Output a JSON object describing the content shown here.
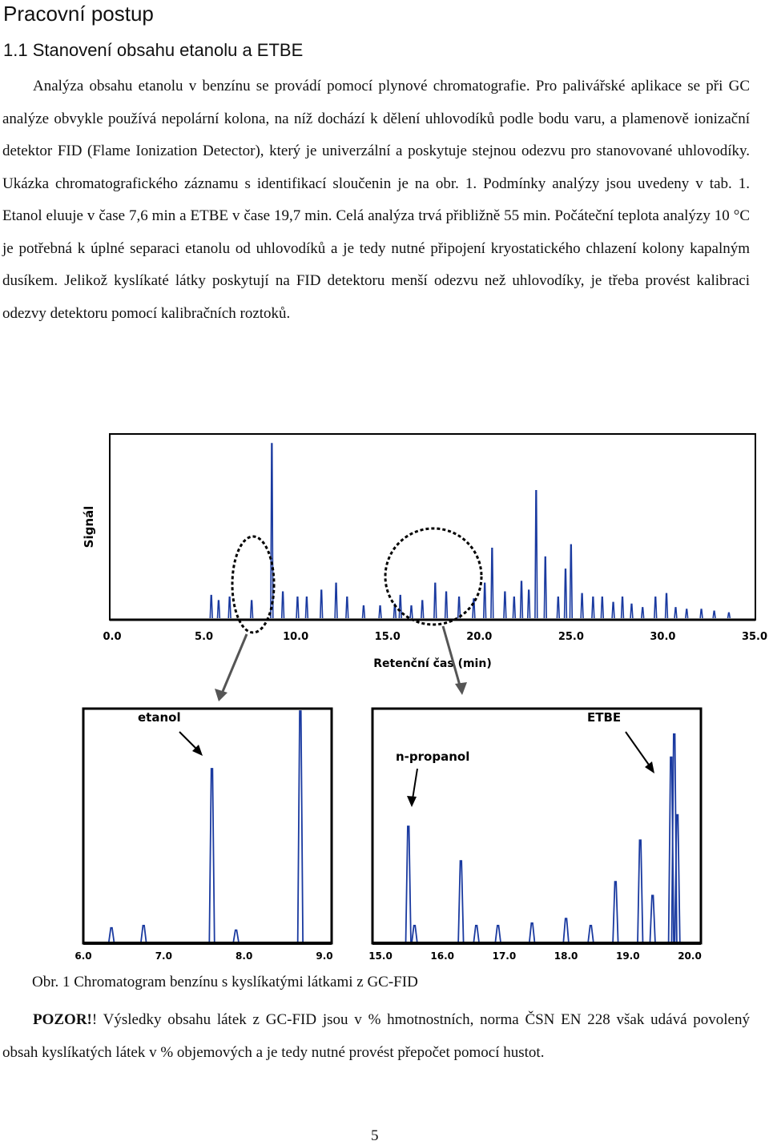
{
  "page": {
    "heading": "Pracovní postup",
    "subheading": "1.1 Stanovení obsahu etanolu a ETBE",
    "paragraph1": "Analýza obsahu etanolu v benzínu se provádí pomocí plynové chromatografie. Pro palivářské aplikace se při GC analýze obvykle používá nepolární kolona, na níž dochází k dělení uhlovodíků podle bodu varu, a plamenově ionizační detektor FID (Flame Ionization Detector), který je univerzální a poskytuje stejnou odezvu pro stanovované uhlovodíky. Ukázka chromatografického záznamu s identifikací sloučenin je na obr. 1. Podmínky analýzy jsou uvedeny v tab. 1. Etanol eluuje v čase 7,6 min a ETBE v čase 19,7 min. Celá analýza trvá přibližně 55 min. Počáteční teplota analýzy 10 °C je potřebná k úplné separaci etanolu od uhlovodíků a je tedy nutné připojení kryostatického chlazení kolony kapalným dusíkem. Jelikož kyslíkaté látky poskytují na FID detektoru menší odezvu než uhlovodíky, je třeba provést kalibraci odezvy detektoru pomocí kalibračních roztoků.",
    "caption": "Obr. 1 Chromatogram benzínu s kyslíkatými látkami z GC-FID",
    "warning_bold": "POZOR!",
    "warning_text": "! Výsledky obsahu látek z GC-FID jsou v % hmotnostních, norma ČSN EN 228 však udává povolený obsah kyslíkatých látek v % objemových a je tedy nutné provést přepočet pomocí hustot.",
    "page_number": "5"
  },
  "chart_data": [
    {
      "type": "line",
      "title": "",
      "xlabel": "Retenční čas (min)",
      "ylabel": "Signál",
      "xlim": [
        0,
        35
      ],
      "ylim": [
        0,
        1
      ],
      "grid": false,
      "x_ticks": [
        "0.0",
        "5.0",
        "10.0",
        "15.0",
        "20.0",
        "25.0",
        "30.0",
        "35.0"
      ],
      "series": [
        {
          "peaks_x": [
            5.4,
            5.8,
            6.4,
            7.6,
            8.7,
            9.3,
            10.1,
            10.6,
            11.4,
            12.2,
            12.8,
            13.7,
            14.6,
            15.4,
            15.7,
            16.3,
            16.9,
            17.6,
            18.2,
            18.9,
            19.7,
            20.3,
            20.7,
            21.4,
            21.9,
            22.3,
            22.7,
            23.1,
            23.6,
            24.3,
            24.7,
            25.0,
            25.6,
            26.2,
            26.7,
            27.3,
            27.8,
            28.3,
            28.9,
            29.6,
            30.2,
            30.7,
            31.3,
            32.1,
            32.8,
            33.6
          ],
          "peaks_y": [
            0.13,
            0.1,
            0.12,
            0.1,
            1.0,
            0.15,
            0.12,
            0.12,
            0.16,
            0.2,
            0.12,
            0.07,
            0.07,
            0.08,
            0.13,
            0.07,
            0.1,
            0.2,
            0.15,
            0.12,
            0.11,
            0.2,
            0.4,
            0.15,
            0.12,
            0.21,
            0.16,
            0.73,
            0.35,
            0.12,
            0.28,
            0.42,
            0.14,
            0.12,
            0.12,
            0.09,
            0.12,
            0.08,
            0.06,
            0.12,
            0.14,
            0.06,
            0.05,
            0.05,
            0.04,
            0.03
          ]
        }
      ],
      "annotations": [
        "etanol",
        "ETBE"
      ]
    },
    {
      "type": "line",
      "title": "",
      "xlim": [
        6.0,
        9.0
      ],
      "ylim": [
        0,
        1
      ],
      "x_ticks": [
        "6.0",
        "7.0",
        "8.0",
        "9.0"
      ],
      "annotations": [
        "etanol"
      ],
      "series": [
        {
          "peaks_x": [
            6.35,
            6.75,
            7.6,
            7.9,
            8.7
          ],
          "peaks_y": [
            0.06,
            0.07,
            0.75,
            0.05,
            1.0
          ]
        }
      ]
    },
    {
      "type": "line",
      "title": "",
      "xlim": [
        15.0,
        20.0
      ],
      "ylim": [
        0,
        1
      ],
      "x_ticks": [
        "15.0",
        "16.0",
        "17.0",
        "18.0",
        "19.0",
        "20.0"
      ],
      "annotations": [
        "n-propanol",
        "ETBE"
      ],
      "series": [
        {
          "peaks_x": [
            15.45,
            15.55,
            16.3,
            16.55,
            16.9,
            17.45,
            18.0,
            18.4,
            18.8,
            19.2,
            19.4,
            19.7,
            19.75,
            19.8
          ],
          "peaks_y": [
            0.5,
            0.07,
            0.35,
            0.07,
            0.07,
            0.08,
            0.1,
            0.07,
            0.26,
            0.44,
            0.2,
            0.8,
            0.9,
            0.55
          ]
        }
      ]
    }
  ]
}
